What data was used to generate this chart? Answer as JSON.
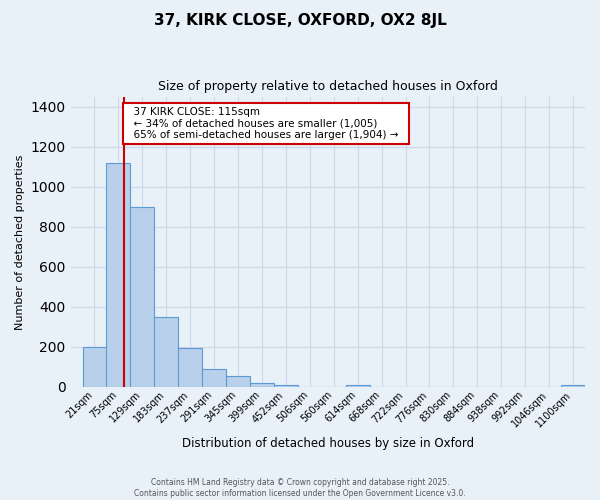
{
  "title": "37, KIRK CLOSE, OXFORD, OX2 8JL",
  "subtitle": "Size of property relative to detached houses in Oxford",
  "xlabel": "Distribution of detached houses by size in Oxford",
  "ylabel": "Number of detached properties",
  "bar_labels": [
    "21sqm",
    "75sqm",
    "129sqm",
    "183sqm",
    "237sqm",
    "291sqm",
    "345sqm",
    "399sqm",
    "452sqm",
    "506sqm",
    "560sqm",
    "614sqm",
    "668sqm",
    "722sqm",
    "776sqm",
    "830sqm",
    "884sqm",
    "938sqm",
    "992sqm",
    "1046sqm",
    "1100sqm"
  ],
  "bar_values": [
    200,
    1120,
    900,
    350,
    195,
    90,
    55,
    20,
    10,
    0,
    0,
    8,
    0,
    0,
    0,
    0,
    0,
    0,
    0,
    0,
    10
  ],
  "bar_color": "#b8d0ea",
  "bar_edge_color": "#5b9bd5",
  "bg_color": "#e8f0f8",
  "grid_color": "#d0d8e8",
  "vline_x": 1.75,
  "vline_color": "#cc0000",
  "annotation_title": "37 KIRK CLOSE: 115sqm",
  "annotation_line1": "← 34% of detached houses are smaller (1,005)",
  "annotation_line2": "65% of semi-detached houses are larger (1,904) →",
  "annotation_box_color": "#ffffff",
  "annotation_box_edge": "#cc0000",
  "ylim": [
    0,
    1450
  ],
  "yticks": [
    0,
    200,
    400,
    600,
    800,
    1000,
    1200,
    1400
  ],
  "footnote1": "Contains HM Land Registry data © Crown copyright and database right 2025.",
  "footnote2": "Contains public sector information licensed under the Open Government Licence v3.0."
}
